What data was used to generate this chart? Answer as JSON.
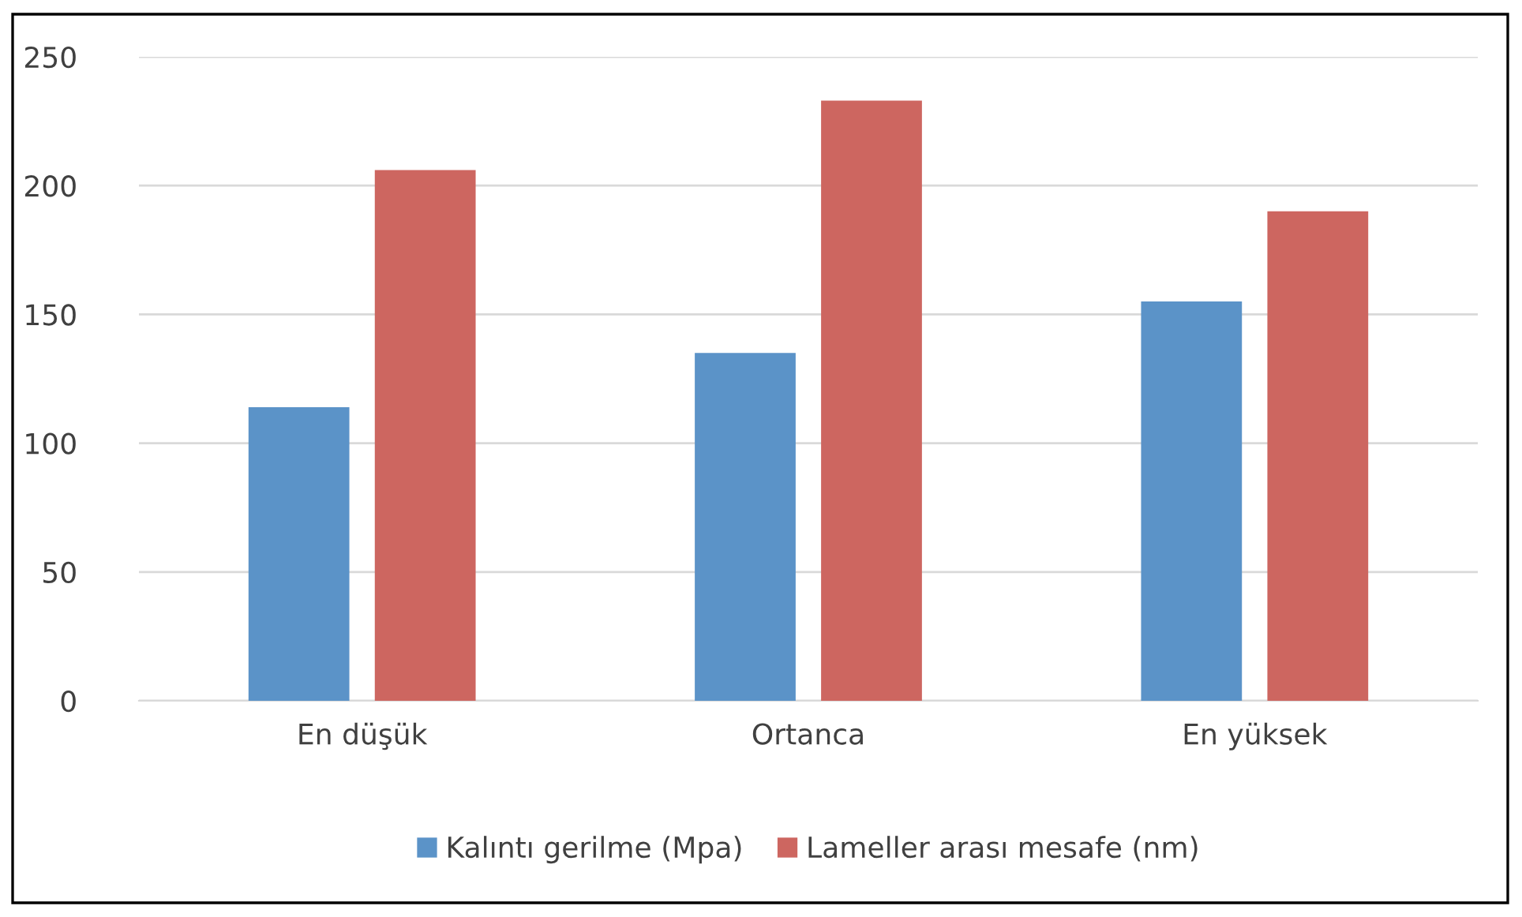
{
  "chart_data": {
    "type": "bar",
    "categories": [
      "En düşük",
      "Ortanca",
      "En yüksek"
    ],
    "series": [
      {
        "name": "Kalıntı gerilme (Mpa)",
        "color": "#5b93c8",
        "values": [
          114,
          135,
          155
        ]
      },
      {
        "name": "Lameller arası mesafe (nm)",
        "color": "#cd6660",
        "values": [
          206,
          233,
          190
        ]
      }
    ],
    "ylim": [
      0,
      250
    ],
    "yticks": [
      0,
      50,
      100,
      150,
      200,
      250
    ],
    "grid": "y",
    "legend": "bottom"
  }
}
